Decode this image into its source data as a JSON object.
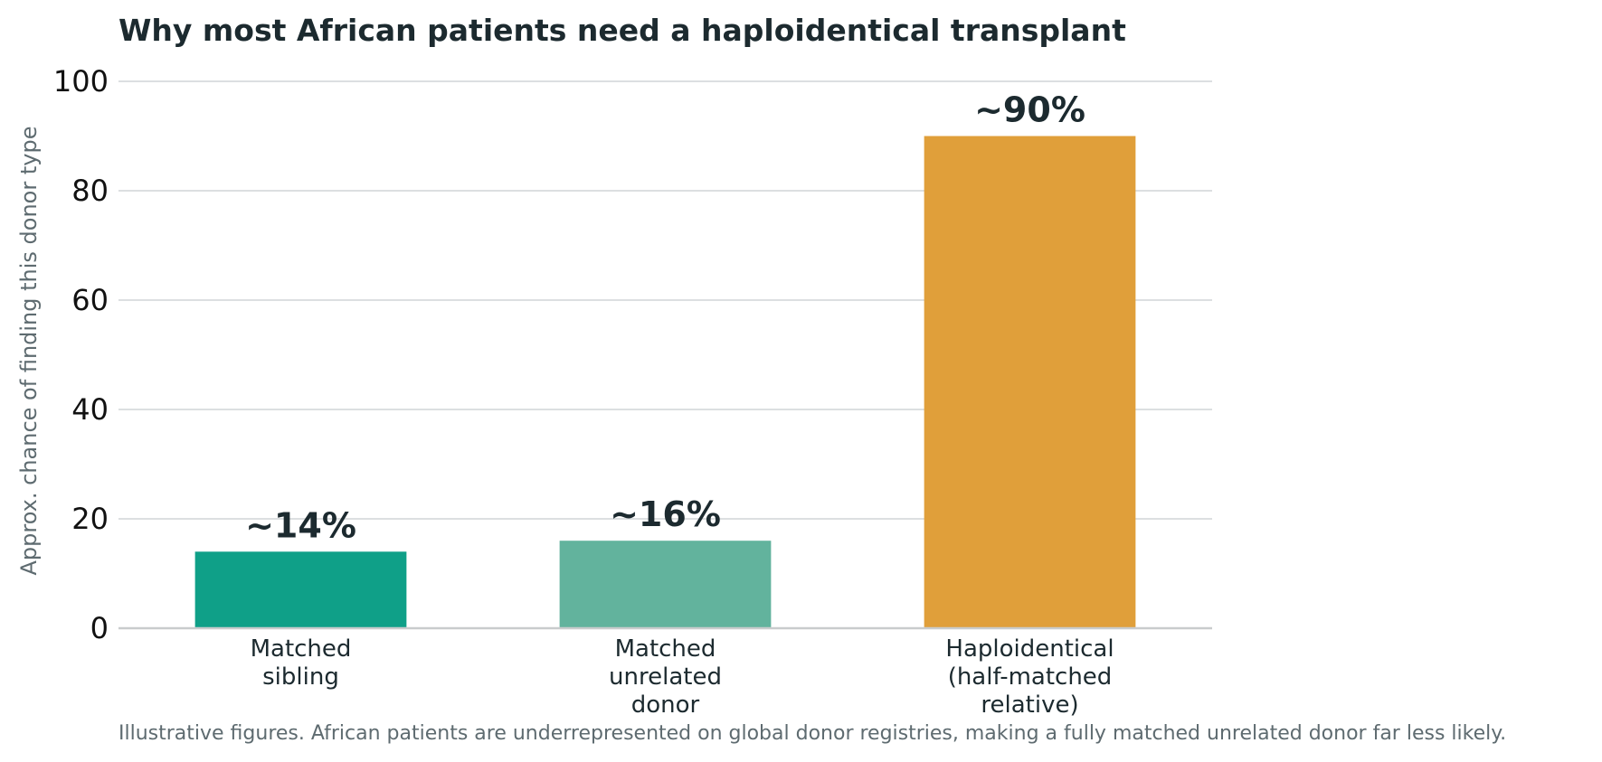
{
  "chart_data": {
    "type": "bar",
    "title": "Why most African patients need a haploidentical transplant",
    "ylabel": "Approx. chance of finding this donor type",
    "xlabel": "",
    "ylim": [
      0,
      100
    ],
    "yticks": [
      0,
      20,
      40,
      60,
      80,
      100
    ],
    "grid": true,
    "categories": [
      [
        "Matched",
        "sibling"
      ],
      [
        "Matched",
        "unrelated",
        "donor"
      ],
      [
        "Haploidentical",
        "(half-matched",
        "relative)"
      ]
    ],
    "values": [
      14,
      16,
      90
    ],
    "data_labels": [
      "~14%",
      "~16%",
      "~90%"
    ],
    "colors": [
      "#0fa088",
      "#62b39d",
      "#e09f3a"
    ],
    "caption": "Illustrative figures. African patients are underrepresented on global donor registries, making a fully matched unrelated donor far less likely."
  }
}
